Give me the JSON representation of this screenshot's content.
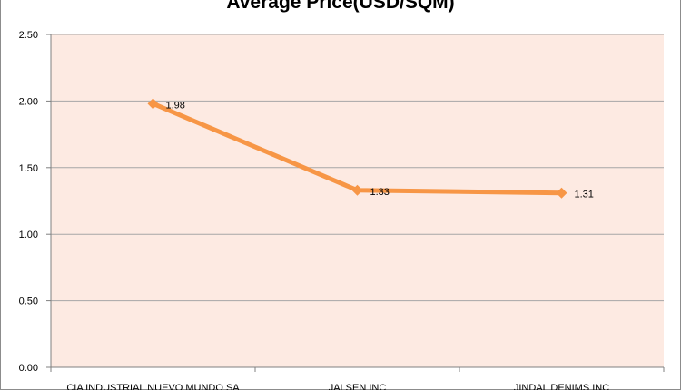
{
  "chart_data": {
    "type": "line",
    "title": "Average Price(USD/SQM)",
    "categories": [
      "CIA INDUSTRIAL NUEVO MUNDO SA",
      "JALSEN INC",
      "JINDAL DENIMS INC"
    ],
    "series": [
      {
        "values": [
          1.98,
          1.33,
          1.31
        ]
      }
    ],
    "data_labels": [
      "1.98",
      "1.33",
      "1.31"
    ],
    "y_ticks": [
      "0.00",
      "0.50",
      "1.00",
      "1.50",
      "2.00",
      "2.50"
    ],
    "ylim": [
      0,
      2.5
    ],
    "grid": "horizontal",
    "legend": "none",
    "colors": {
      "line": "#f79646",
      "plot_background": "#fdeae2",
      "grid": "#a6a6a6"
    }
  }
}
